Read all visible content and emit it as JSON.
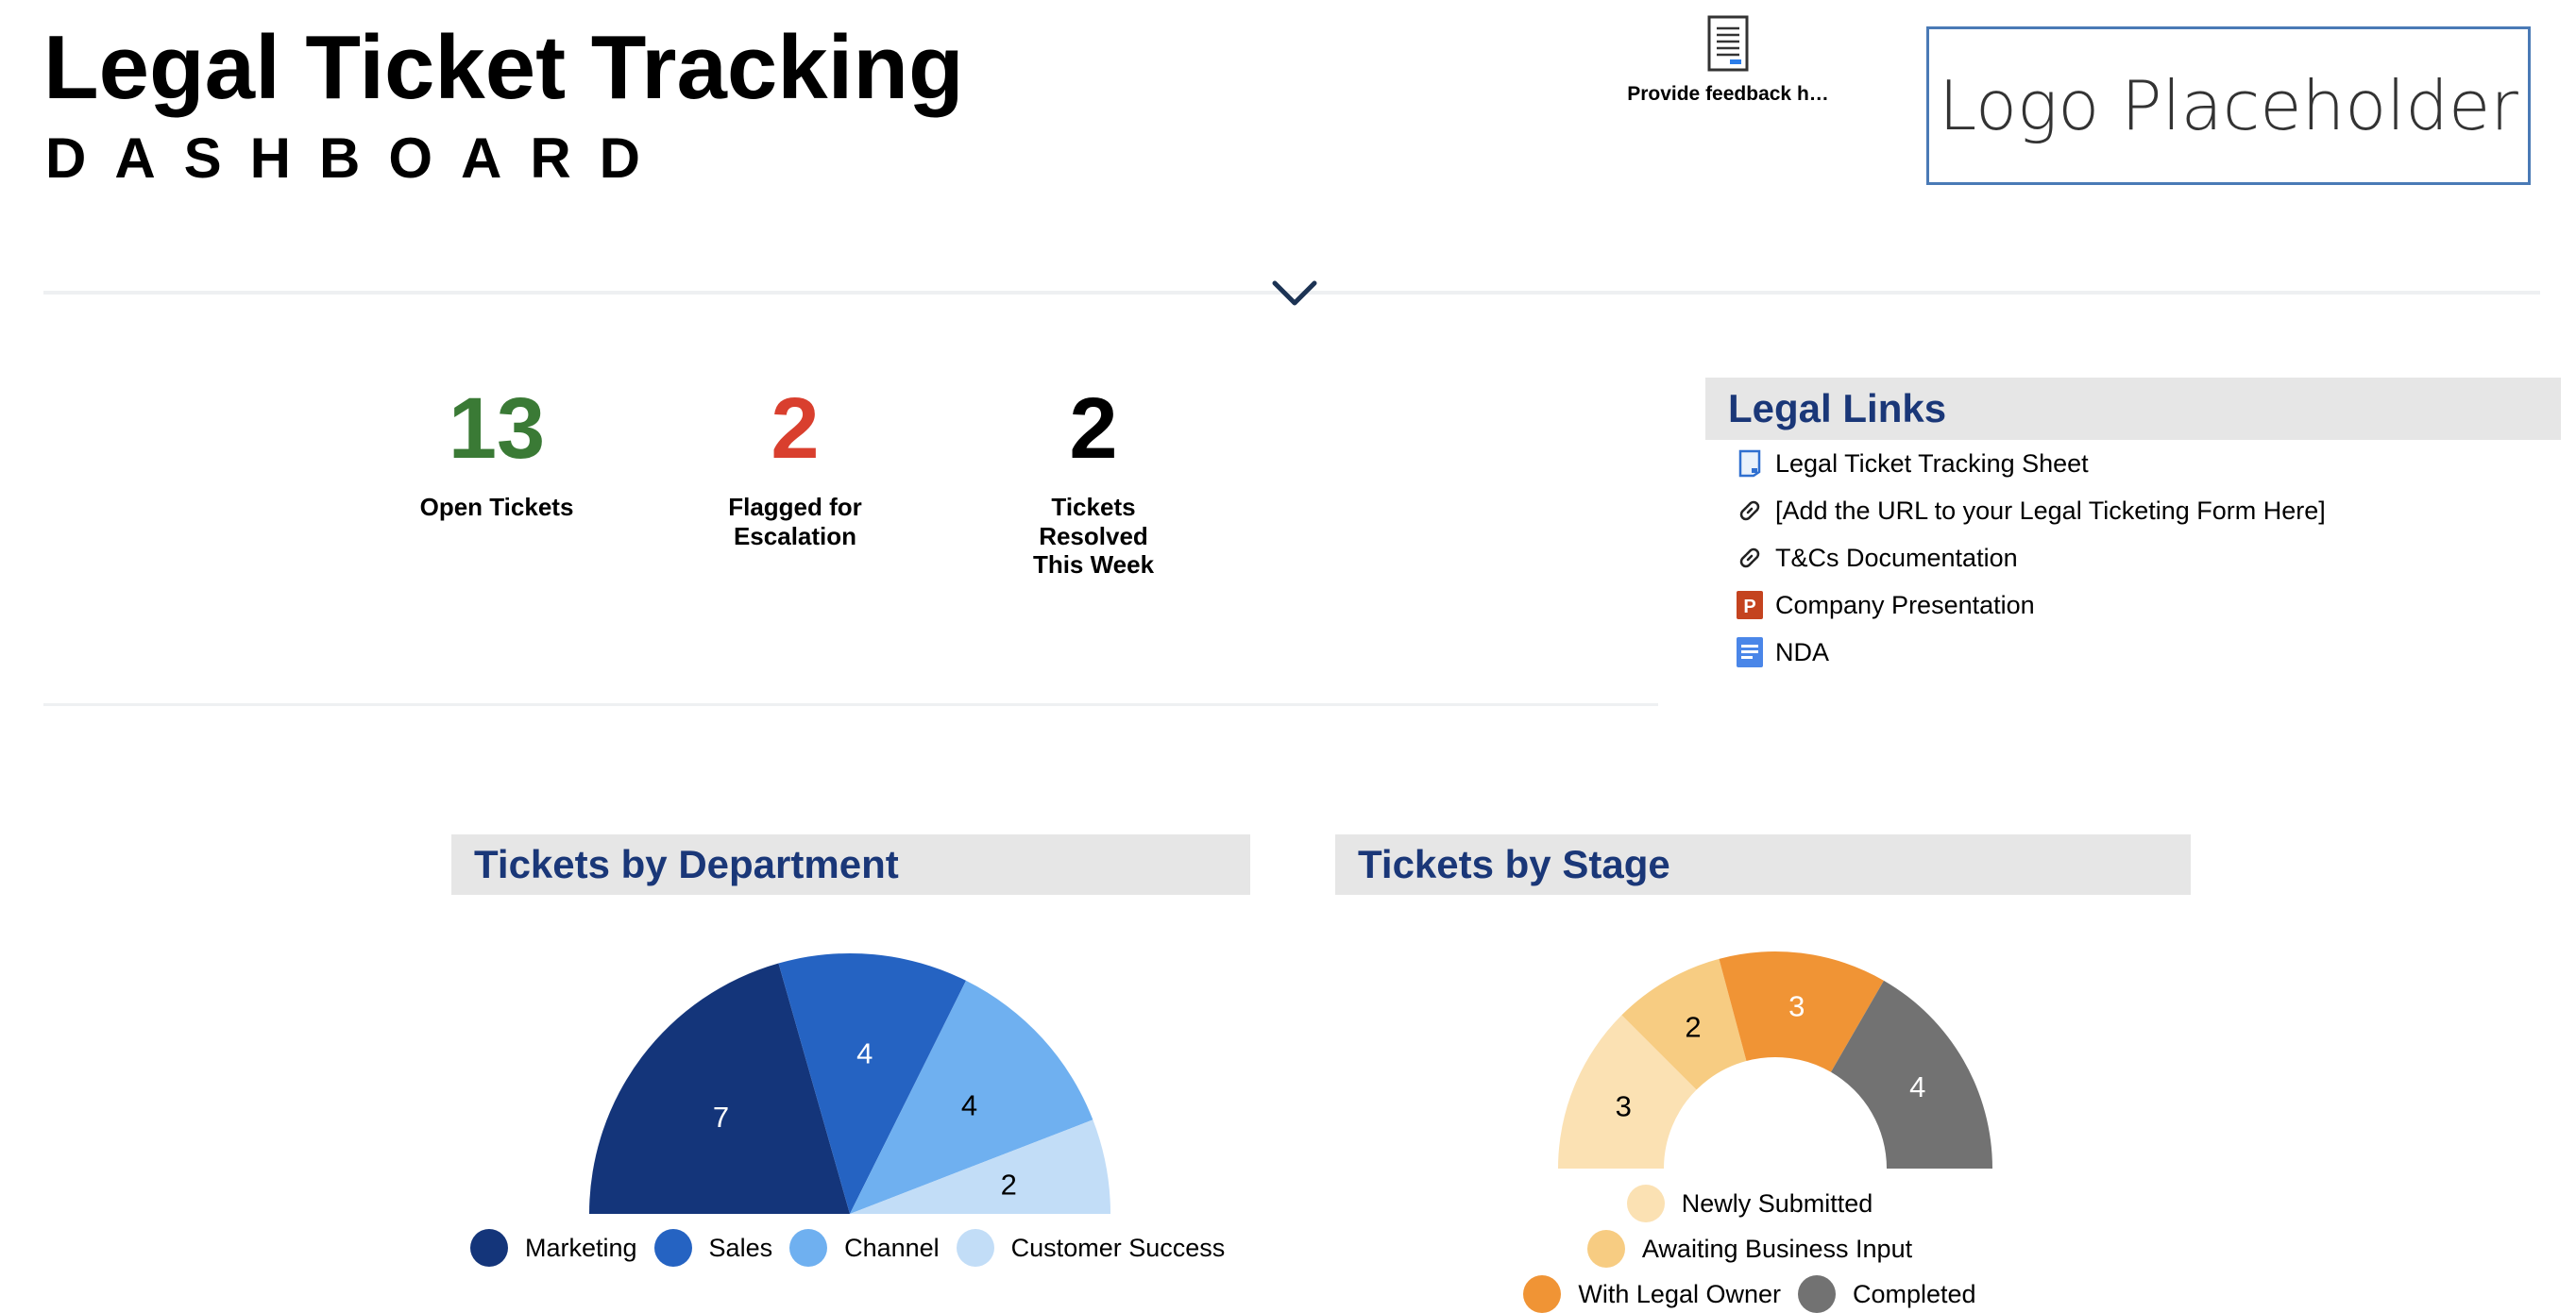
{
  "header": {
    "title": "Legal Ticket Tracking",
    "subtitle": "DASHBOARD",
    "feedback_label": "Provide feedback h…",
    "logo_text": "Logo Placeholder"
  },
  "metrics": [
    {
      "value": "13",
      "label": "Open Tickets",
      "color": "#3a7a35"
    },
    {
      "value": "2",
      "label": "Flagged for Escalation",
      "color": "#d93f2e"
    },
    {
      "value": "2",
      "label": "Tickets Resolved This Week",
      "color": "#000000"
    }
  ],
  "legal_links": {
    "title": "Legal Links",
    "items": [
      {
        "label": "Legal Ticket Tracking Sheet",
        "icon": "sheet-icon"
      },
      {
        "label": "[Add the URL to your Legal Ticketing Form Here]",
        "icon": "link-icon"
      },
      {
        "label": "T&Cs Documentation",
        "icon": "link-icon"
      },
      {
        "label": "Company Presentation",
        "icon": "powerpoint-icon"
      },
      {
        "label": "NDA",
        "icon": "document-icon"
      }
    ]
  },
  "chart_data": [
    {
      "type": "pie",
      "title": "Tickets by Department",
      "categories": [
        "Marketing",
        "Sales",
        "Channel",
        "Customer Success"
      ],
      "values": [
        7,
        4,
        4,
        2
      ],
      "colors": [
        "#14357a",
        "#2563c2",
        "#6fb0f0",
        "#c2ddf7"
      ],
      "label_colors": [
        "#ffffff",
        "#ffffff",
        "#000000",
        "#000000"
      ],
      "style": "half-pie",
      "legend": "bottom"
    },
    {
      "type": "pie",
      "title": "Tickets by Stage",
      "categories": [
        "Newly Submitted",
        "Awaiting Business Input",
        "With Legal Owner",
        "Completed"
      ],
      "values": [
        3,
        2,
        3,
        4
      ],
      "colors": [
        "#fbe1b3",
        "#f7cc82",
        "#f09435",
        "#727272"
      ],
      "label_colors": [
        "#000000",
        "#000000",
        "#ffffff",
        "#ffffff"
      ],
      "style": "half-donut",
      "legend": "bottom"
    }
  ]
}
